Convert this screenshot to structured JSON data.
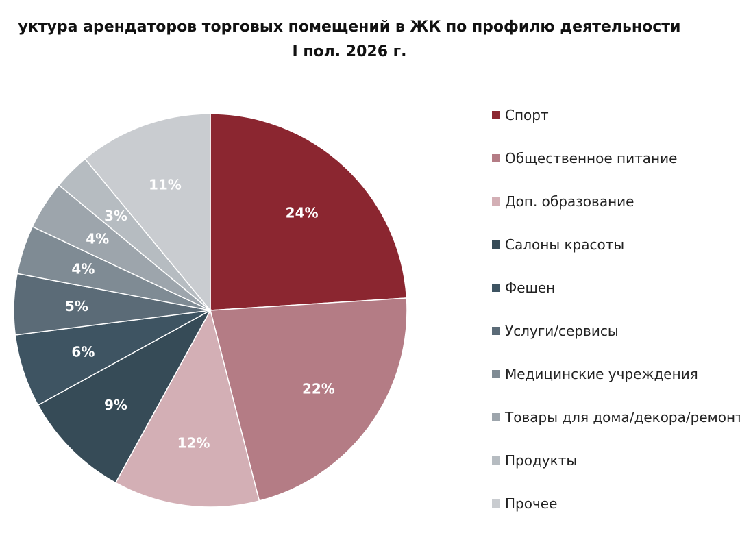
{
  "chart_data": {
    "type": "pie",
    "title_lines": [
      "уктура арендаторов торговых помещений в ЖК по профилю деятельности",
      "I пол. 2026 г."
    ],
    "slices": [
      {
        "name": "Спорт",
        "value": 24,
        "label": "24%",
        "color": "#8B2630"
      },
      {
        "name": "Общественное питание",
        "value": 22,
        "label": "22%",
        "color": "#B47C85"
      },
      {
        "name": "Доп. образование",
        "value": 12,
        "label": "12%",
        "color": "#D3AFB5"
      },
      {
        "name": "Салоны красоты",
        "value": 9,
        "label": "9%",
        "color": "#364B57"
      },
      {
        "name": "Фешен",
        "value": 6,
        "label": "6%",
        "color": "#3E5462"
      },
      {
        "name": "Услуги/сервисы",
        "value": 5,
        "label": "5%",
        "color": "#5B6B77"
      },
      {
        "name": "Медицинские учреждения",
        "value": 4,
        "label": "4%",
        "color": "#7F8B94"
      },
      {
        "name": "Товары для дома/декора/ремонта",
        "value": 4,
        "label": "4%",
        "color": "#9DA5AC"
      },
      {
        "name": "Продукты",
        "value": 3,
        "label": "3%",
        "color": "#B6BCC1"
      },
      {
        "name": "Прочее",
        "value": 11,
        "label": "11%",
        "color": "#C9CCD0"
      }
    ],
    "legend_position": "right"
  }
}
